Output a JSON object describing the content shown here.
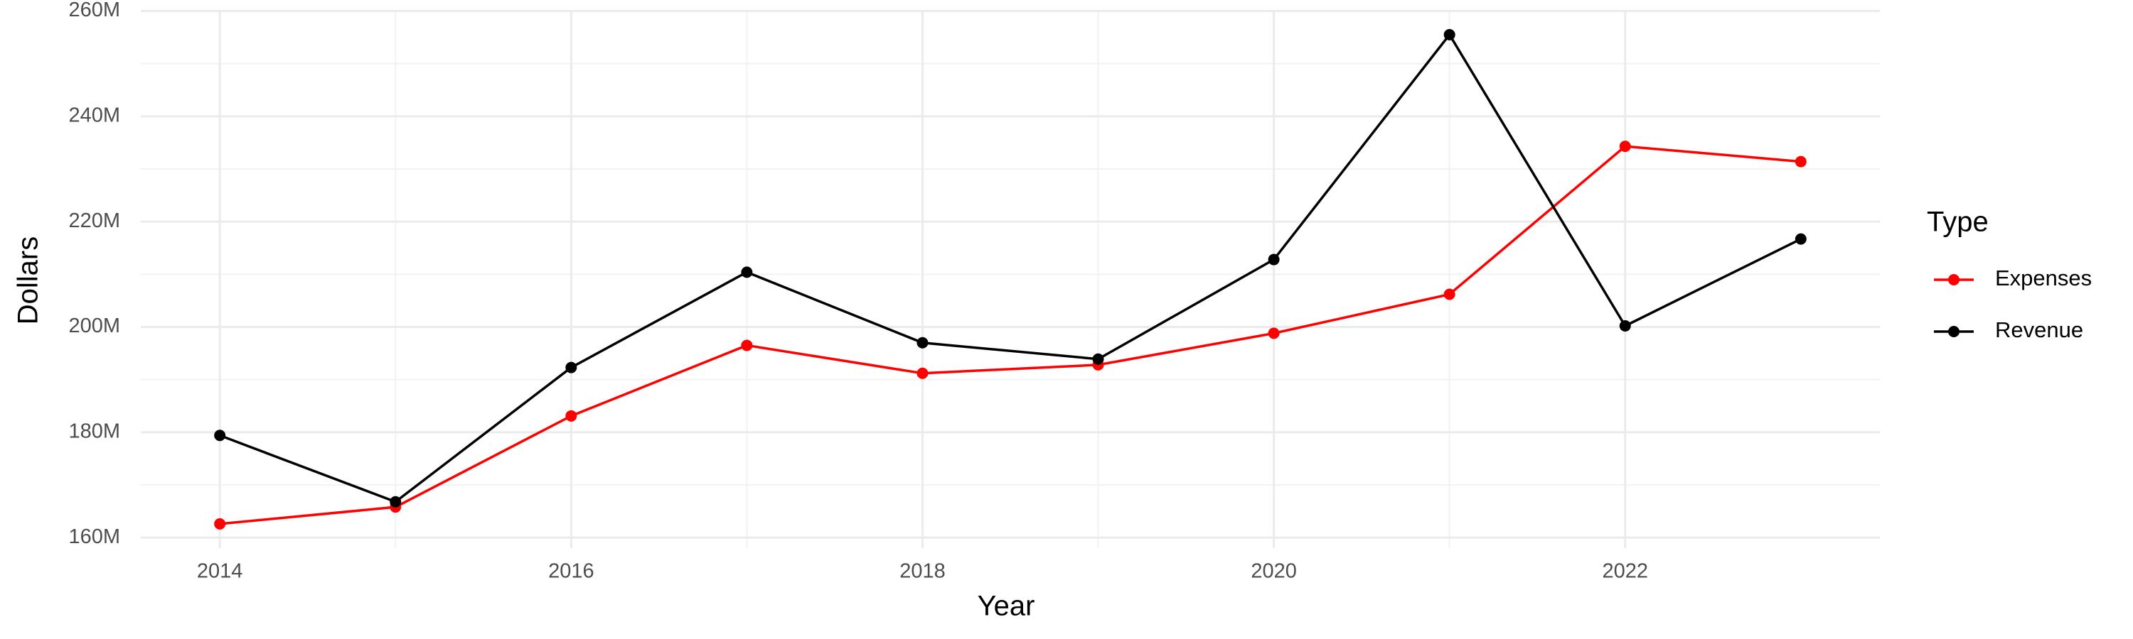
{
  "chart_data": {
    "type": "line",
    "x_label": "Year",
    "y_label": "Dollars",
    "legend_title": "Type",
    "x": [
      2014,
      2015,
      2016,
      2017,
      2018,
      2019,
      2020,
      2021,
      2022,
      2023
    ],
    "series": [
      {
        "name": "Expenses",
        "color": "#ff0000",
        "values": [
          162600000,
          165800000,
          183100000,
          196500000,
          191200000,
          192800000,
          198800000,
          206200000,
          234300000,
          231400000
        ]
      },
      {
        "name": "Revenue",
        "color": "#000000",
        "values": [
          179400000,
          166800000,
          192300000,
          210400000,
          197000000,
          193900000,
          212800000,
          255500000,
          200200000,
          216700000
        ]
      }
    ],
    "xlim": [
      2013.55,
      2023.45
    ],
    "xticks": [
      2014,
      2016,
      2018,
      2020,
      2022
    ],
    "ylim": [
      158000000,
      260200000
    ],
    "yticks": [
      {
        "value": 160000000,
        "label": "160M"
      },
      {
        "value": 180000000,
        "label": "180M"
      },
      {
        "value": 200000000,
        "label": "200M"
      },
      {
        "value": 220000000,
        "label": "220M"
      },
      {
        "value": 240000000,
        "label": "240M"
      },
      {
        "value": 260000000,
        "label": "260M"
      }
    ],
    "grid": true,
    "legend": "right"
  }
}
